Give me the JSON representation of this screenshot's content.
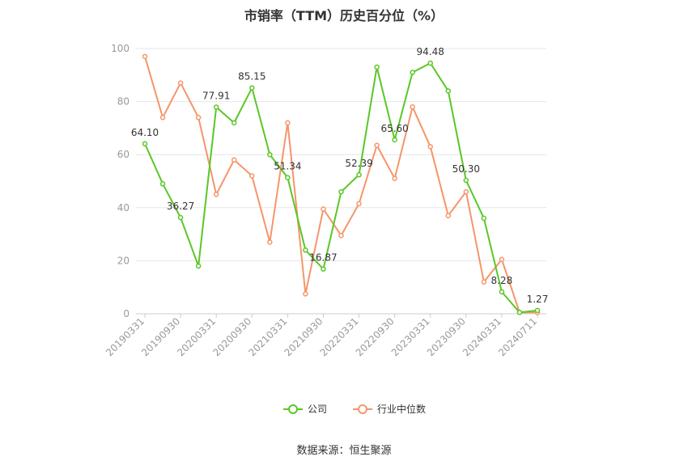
{
  "chart_data": {
    "type": "line",
    "title": "市销率（TTM）历史百分位（%）",
    "ylim": [
      0,
      100
    ],
    "yticks": [
      0,
      20,
      40,
      60,
      80,
      100
    ],
    "x": [
      "20190331",
      "20190630",
      "20190930",
      "20191231",
      "20200331",
      "20200630",
      "20200930",
      "20201231",
      "20210331",
      "20210630",
      "20210930",
      "20211231",
      "20220331",
      "20220630",
      "20220930",
      "20221231",
      "20230331",
      "20230630",
      "20230930",
      "20231231",
      "20240331",
      "20240630",
      "20240711"
    ],
    "xtick_labels": [
      "20190331",
      "20190930",
      "20200331",
      "20200930",
      "20210331",
      "20210930",
      "20220331",
      "20220930",
      "20230331",
      "20230930",
      "20240331",
      "20240711"
    ],
    "series": [
      {
        "name": "公司",
        "color": "#5ac726",
        "values": [
          64.1,
          49,
          36.27,
          18,
          77.91,
          72,
          85.15,
          60,
          51.34,
          24,
          16.87,
          46,
          52.39,
          93,
          65.6,
          91,
          94.48,
          84,
          50.3,
          36,
          8.28,
          0.5,
          1.27
        ],
        "labels": {
          "0": "64.10",
          "2": "36.27",
          "4": "77.91",
          "6": "85.15",
          "8": "51.34",
          "10": "16.87",
          "12": "52.39",
          "14": "65.60",
          "16": "94.48",
          "18": "50.30",
          "20": "8.28",
          "22": "1.27"
        }
      },
      {
        "name": "行业中位数",
        "color": "#f5956a",
        "values": [
          97,
          74,
          87,
          74,
          45,
          58,
          52,
          27,
          72,
          7.5,
          39.5,
          29.5,
          41.5,
          63.5,
          51,
          78,
          63,
          37,
          46,
          12,
          20.5,
          0.5,
          0.5
        ]
      }
    ],
    "legend": {
      "position": "bottom-center"
    },
    "grid": true
  },
  "source_text": "数据来源：恒生聚源"
}
